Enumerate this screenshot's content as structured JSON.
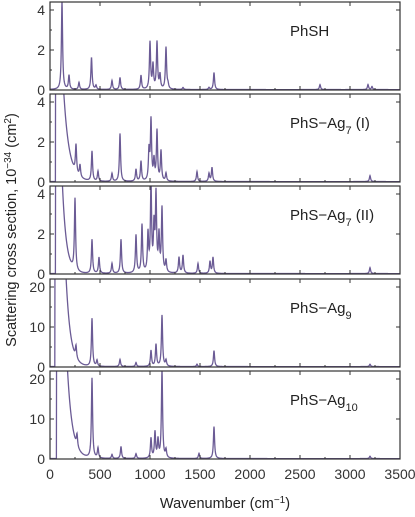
{
  "figure": {
    "ylabel_html": "Scattering cross section, 10<tspan baseline-shift=\"super\" font-size=\"10\">−34</tspan> (cm<tspan baseline-shift=\"super\" font-size=\"10\">2</tspan>)",
    "xlabel_html": "Wavenumber (cm<tspan baseline-shift=\"super\" font-size=\"10\">−1</tspan>)",
    "line_color": "#6b5b95"
  },
  "chart_data": [
    {
      "type": "line",
      "title_html": "PhSH",
      "xlim": [
        0,
        3500
      ],
      "ylim": [
        0,
        4.4
      ],
      "yticks": [
        0,
        2,
        4
      ],
      "xticks": [
        0,
        500,
        1000,
        1500,
        2000,
        2500,
        3000,
        3500
      ],
      "baseline": 0.02,
      "rise": {
        "amp": 0,
        "tau": 60,
        "start": 150
      },
      "peaks": [
        {
          "x": 120,
          "y": 4.4
        },
        {
          "x": 190,
          "y": 0.7
        },
        {
          "x": 290,
          "y": 0.35
        },
        {
          "x": 415,
          "y": 1.6
        },
        {
          "x": 460,
          "y": 0.2
        },
        {
          "x": 620,
          "y": 0.45
        },
        {
          "x": 700,
          "y": 0.6
        },
        {
          "x": 910,
          "y": 0.7
        },
        {
          "x": 1000,
          "y": 2.35
        },
        {
          "x": 1030,
          "y": 1.2
        },
        {
          "x": 1070,
          "y": 2.35
        },
        {
          "x": 1100,
          "y": 0.7
        },
        {
          "x": 1160,
          "y": 2.1
        },
        {
          "x": 1180,
          "y": 0.2
        },
        {
          "x": 1330,
          "y": 0.1
        },
        {
          "x": 1640,
          "y": 0.85
        },
        {
          "x": 1590,
          "y": 0.1
        },
        {
          "x": 2700,
          "y": 0.25
        },
        {
          "x": 3180,
          "y": 0.25
        },
        {
          "x": 3220,
          "y": 0.15
        }
      ]
    },
    {
      "type": "line",
      "title_html": "PhS−Ag<tspan baseline-shift=\"sub\" font-size=\"11\">7</tspan> (I)",
      "xlim": [
        0,
        3500
      ],
      "ylim": [
        0,
        4.4
      ],
      "yticks": [
        0,
        2,
        4
      ],
      "xticks": [
        0,
        500,
        1000,
        1500,
        2000,
        2500,
        3000,
        3500
      ],
      "baseline": 0.02,
      "rise": {
        "amp": 20,
        "tau": 55,
        "start": 110
      },
      "peaks": [
        {
          "x": 260,
          "y": 1.4
        },
        {
          "x": 300,
          "y": 0.6
        },
        {
          "x": 420,
          "y": 1.5
        },
        {
          "x": 480,
          "y": 0.5
        },
        {
          "x": 620,
          "y": 0.4
        },
        {
          "x": 700,
          "y": 2.4
        },
        {
          "x": 860,
          "y": 0.6
        },
        {
          "x": 910,
          "y": 1.0
        },
        {
          "x": 990,
          "y": 1.5
        },
        {
          "x": 1010,
          "y": 3.0
        },
        {
          "x": 1040,
          "y": 1.0
        },
        {
          "x": 1070,
          "y": 2.5
        },
        {
          "x": 1110,
          "y": 1.5
        },
        {
          "x": 1160,
          "y": 0.4
        },
        {
          "x": 1470,
          "y": 0.5
        },
        {
          "x": 1590,
          "y": 0.4
        },
        {
          "x": 1620,
          "y": 0.7
        },
        {
          "x": 3200,
          "y": 0.3
        }
      ]
    },
    {
      "type": "line",
      "title_html": "PhS−Ag<tspan baseline-shift=\"sub\" font-size=\"11\">7</tspan> (II)",
      "xlim": [
        0,
        3500
      ],
      "ylim": [
        0,
        4.4
      ],
      "yticks": [
        0,
        2,
        4
      ],
      "xticks": [
        0,
        500,
        1000,
        1500,
        2000,
        2500,
        3000,
        3500
      ],
      "baseline": 0.02,
      "rise": {
        "amp": 25,
        "tau": 40,
        "start": 110
      },
      "peaks": [
        {
          "x": 250,
          "y": 3.6
        },
        {
          "x": 420,
          "y": 1.7
        },
        {
          "x": 490,
          "y": 0.8
        },
        {
          "x": 620,
          "y": 0.5
        },
        {
          "x": 710,
          "y": 1.7
        },
        {
          "x": 860,
          "y": 1.9
        },
        {
          "x": 920,
          "y": 2.4
        },
        {
          "x": 980,
          "y": 1.9
        },
        {
          "x": 1010,
          "y": 4.4
        },
        {
          "x": 1040,
          "y": 2.2
        },
        {
          "x": 1060,
          "y": 3.8
        },
        {
          "x": 1090,
          "y": 1.8
        },
        {
          "x": 1120,
          "y": 3.2
        },
        {
          "x": 1160,
          "y": 0.6
        },
        {
          "x": 1290,
          "y": 0.8
        },
        {
          "x": 1330,
          "y": 0.9
        },
        {
          "x": 1480,
          "y": 0.5
        },
        {
          "x": 1600,
          "y": 0.6
        },
        {
          "x": 1630,
          "y": 0.8
        },
        {
          "x": 3200,
          "y": 0.3
        }
      ]
    },
    {
      "type": "line",
      "title_html": "PhS−Ag<tspan baseline-shift=\"sub\" font-size=\"11\">9</tspan>",
      "xlim": [
        0,
        3500
      ],
      "ylim": [
        0,
        22
      ],
      "yticks": [
        0,
        10,
        20
      ],
      "xticks": [
        0,
        500,
        1000,
        1500,
        2000,
        2500,
        3000,
        3500
      ],
      "baseline": 0.1,
      "rise": {
        "amp": 260,
        "tau": 45,
        "start": 100
      },
      "peaks": [
        {
          "x": 260,
          "y": 3.0
        },
        {
          "x": 420,
          "y": 12.0
        },
        {
          "x": 470,
          "y": 1.5
        },
        {
          "x": 700,
          "y": 1.8
        },
        {
          "x": 860,
          "y": 1.0
        },
        {
          "x": 1010,
          "y": 4.0
        },
        {
          "x": 1060,
          "y": 5.5
        },
        {
          "x": 1120,
          "y": 12.8
        },
        {
          "x": 1160,
          "y": 1.5
        },
        {
          "x": 1470,
          "y": 0.6
        },
        {
          "x": 1640,
          "y": 4.0
        },
        {
          "x": 3200,
          "y": 0.6
        }
      ]
    },
    {
      "type": "line",
      "title_html": "PhS−Ag<tspan baseline-shift=\"sub\" font-size=\"11\">10</tspan>",
      "xlim": [
        0,
        3500
      ],
      "ylim": [
        0,
        22
      ],
      "yticks": [
        0,
        10,
        20
      ],
      "xticks": [
        0,
        500,
        1000,
        1500,
        2000,
        2500,
        3000,
        3500
      ],
      "baseline": 0.1,
      "rise": {
        "amp": 200,
        "tau": 50,
        "start": 130
      },
      "peaks": [
        {
          "x": 270,
          "y": 3.0
        },
        {
          "x": 420,
          "y": 20.0
        },
        {
          "x": 480,
          "y": 2.5
        },
        {
          "x": 620,
          "y": 1.0
        },
        {
          "x": 710,
          "y": 3.0
        },
        {
          "x": 860,
          "y": 1.2
        },
        {
          "x": 1010,
          "y": 5.0
        },
        {
          "x": 1050,
          "y": 6.5
        },
        {
          "x": 1080,
          "y": 4.5
        },
        {
          "x": 1120,
          "y": 22.0
        },
        {
          "x": 1160,
          "y": 2.0
        },
        {
          "x": 1490,
          "y": 1.3
        },
        {
          "x": 1640,
          "y": 8.0
        },
        {
          "x": 3200,
          "y": 0.6
        }
      ]
    }
  ]
}
